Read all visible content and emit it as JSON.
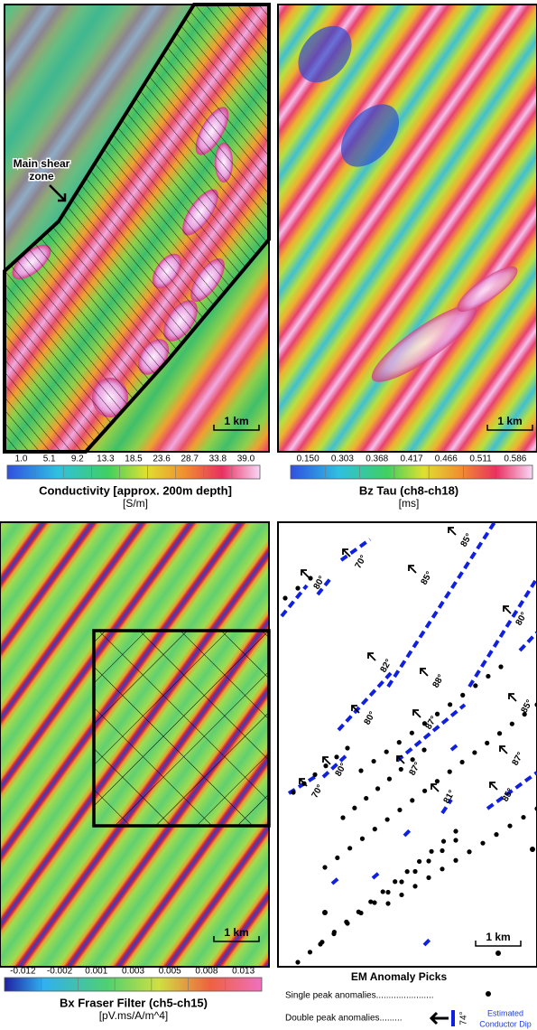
{
  "panels": [
    {
      "annotation": [
        "Main shear",
        "zone"
      ],
      "scale": "1 km",
      "colorbar": {
        "ticks": [
          "1.0",
          "5.1",
          "9.2",
          "13.3",
          "18.5",
          "23.6",
          "28.7",
          "33.8",
          "39.0"
        ]
      },
      "title": "Conductivity [approx. 200m depth]",
      "units": "[S/m]"
    },
    {
      "scale": "1 km",
      "colorbar": {
        "ticks": [
          "0.150",
          "0.303",
          "0.368",
          "0.417",
          "0.466",
          "0.511",
          "0.586"
        ]
      },
      "title": "Bz Tau (ch8-ch18)",
      "units": "[ms]"
    },
    {
      "scale": "1 km",
      "colorbar": {
        "ticks": [
          "-0.012",
          "-0.002",
          "0.001",
          "0.003",
          "0.005",
          "0.008",
          "0.013"
        ]
      },
      "title": "Bx Fraser Filter (ch5-ch15)",
      "units": "[pV.ms/A/m^4]"
    },
    {
      "scale": "1 km",
      "dip_labels": [
        "85°",
        "70°",
        "80°",
        "85°",
        "80°",
        "82°",
        "88°",
        "80°",
        "87°",
        "85°",
        "80°",
        "87°",
        "70°",
        "87°",
        "81°",
        "85°"
      ],
      "legend": {
        "title": "EM Anomaly Picks",
        "single": "Single peak anomalies.......................",
        "double": "Double peak anomalies.........",
        "example_dip": "74°",
        "dip_note": [
          "Estimated",
          "Conductor Dip"
        ]
      }
    }
  ]
}
